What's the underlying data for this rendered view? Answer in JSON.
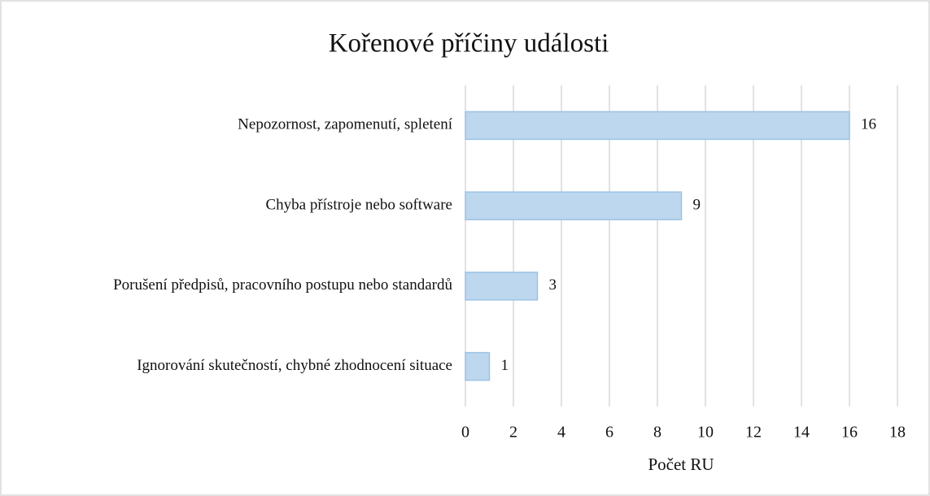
{
  "chart_data": {
    "type": "bar",
    "orientation": "horizontal",
    "title": "Kořenové příčiny události",
    "x_label": "Počet RU",
    "categories": [
      "Nepozornost, zapomenutí, spletení",
      "Chyba přístroje nebo software",
      "Porušení předpisů, pracovního postupu nebo standardů",
      "Ignorování skutečností, chybné zhodnocení situace"
    ],
    "values": [
      16,
      9,
      3,
      1
    ],
    "color": "#bdd7ee",
    "edge_color": "#9dc3e6",
    "xlim": [
      0,
      18
    ],
    "xticks": [
      0,
      2,
      4,
      6,
      8,
      10,
      12,
      14,
      16,
      18
    ],
    "grid": true
  }
}
